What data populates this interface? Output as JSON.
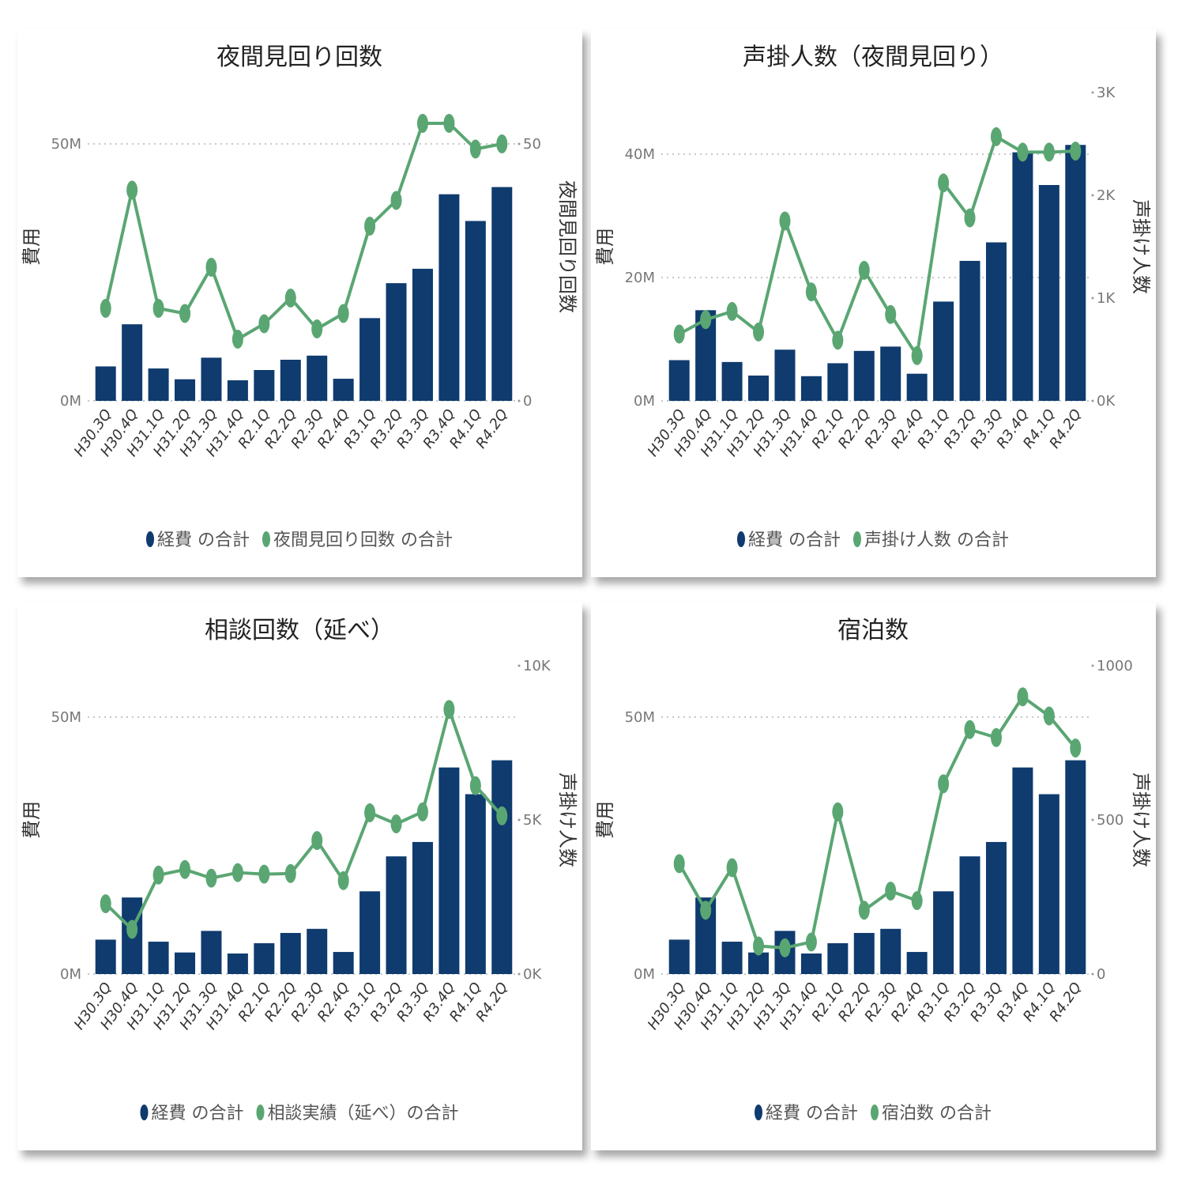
{
  "colors": {
    "bar": "#0f3b6e",
    "line": "#5aa673",
    "grid": "#c8c8c8"
  },
  "chart_data": [
    {
      "type": "bar+line",
      "title": "夜間見回り回数",
      "categories": [
        "H30.3Q",
        "H30.4Q",
        "H31.1Q",
        "H31.2Q",
        "H31.3Q",
        "H31.4Q",
        "R2.1Q",
        "R2.2Q",
        "R2.3Q",
        "R2.4Q",
        "R3.1Q",
        "R3.2Q",
        "R3.3Q",
        "R3.4Q",
        "R4.1Q",
        "R4.2Q"
      ],
      "ylabel": "費用",
      "y2label": "夜間見回り回数",
      "ylim": [
        0,
        60000000
      ],
      "y2lim": [
        0,
        60
      ],
      "left_ticks": [
        {
          "value": 0,
          "label": "0M"
        },
        {
          "value": 50000000,
          "label": "50M"
        }
      ],
      "right_ticks": [
        {
          "value": 0,
          "label": "0"
        },
        {
          "value": 50,
          "label": "50"
        }
      ],
      "grid": true,
      "legend_position": "bottom",
      "series": [
        {
          "name": "経費 の合計",
          "type": "bar",
          "axis": "left",
          "values": [
            6700000,
            14900000,
            6300000,
            4200000,
            8400000,
            4000000,
            6000000,
            8000000,
            8800000,
            4300000,
            16100000,
            22900000,
            25700000,
            40200000,
            35000000,
            41600000
          ]
        },
        {
          "name": "夜間見回り回数 の合計",
          "type": "line",
          "axis": "right",
          "values": [
            18,
            41,
            18,
            17,
            26,
            12,
            15,
            20,
            14,
            17,
            34,
            39,
            54,
            54,
            49,
            50
          ]
        }
      ]
    },
    {
      "type": "bar+line",
      "title": "声掛人数（夜間見回り）",
      "categories": [
        "H30.3Q",
        "H30.4Q",
        "H31.1Q",
        "H31.2Q",
        "H31.3Q",
        "H31.4Q",
        "R2.1Q",
        "R2.2Q",
        "R2.3Q",
        "R2.4Q",
        "R3.1Q",
        "R3.2Q",
        "R3.3Q",
        "R3.4Q",
        "R4.1Q",
        "R4.2Q"
      ],
      "ylabel": "費用",
      "y2label": "声掛け人数",
      "ylim": [
        0,
        50000000
      ],
      "y2lim": [
        0,
        3000
      ],
      "left_ticks": [
        {
          "value": 0,
          "label": "0M"
        },
        {
          "value": 20000000,
          "label": "20M"
        },
        {
          "value": 40000000,
          "label": "40M"
        }
      ],
      "right_ticks": [
        {
          "value": 0,
          "label": "0K"
        },
        {
          "value": 1000,
          "label": "1K"
        },
        {
          "value": 2000,
          "label": "2K"
        },
        {
          "value": 3000,
          "label": "3K"
        }
      ],
      "grid": true,
      "legend_position": "bottom",
      "series": [
        {
          "name": "経費 の合計",
          "type": "bar",
          "axis": "left",
          "values": [
            6600000,
            14700000,
            6300000,
            4100000,
            8300000,
            4000000,
            6100000,
            8100000,
            8800000,
            4400000,
            16100000,
            22700000,
            25700000,
            40300000,
            35000000,
            41500000
          ]
        },
        {
          "name": "声掛け人数 の合計",
          "type": "line",
          "axis": "right",
          "values": [
            650,
            790,
            870,
            670,
            1750,
            1060,
            590,
            1270,
            840,
            440,
            2120,
            1780,
            2570,
            2420,
            2420,
            2430
          ]
        }
      ]
    },
    {
      "type": "bar+line",
      "title": "相談回数（延べ）",
      "categories": [
        "H30.3Q",
        "H30.4Q",
        "H31.1Q",
        "H31.2Q",
        "H31.3Q",
        "H31.4Q",
        "R2.1Q",
        "R2.2Q",
        "R2.3Q",
        "R2.4Q",
        "R3.1Q",
        "R3.2Q",
        "R3.3Q",
        "R3.4Q",
        "R4.1Q",
        "R4.2Q"
      ],
      "ylabel": "費用",
      "y2label": "声掛け人数",
      "ylim": [
        0,
        60000000
      ],
      "y2lim": [
        0,
        10000
      ],
      "left_ticks": [
        {
          "value": 0,
          "label": "0M"
        },
        {
          "value": 50000000,
          "label": "50M"
        }
      ],
      "right_ticks": [
        {
          "value": 0,
          "label": "0K"
        },
        {
          "value": 5000,
          "label": "5K"
        },
        {
          "value": 10000,
          "label": "10K"
        }
      ],
      "grid": true,
      "legend_position": "bottom",
      "series": [
        {
          "name": "経費 の合計",
          "type": "bar",
          "axis": "left",
          "values": [
            6700000,
            14900000,
            6300000,
            4200000,
            8400000,
            4000000,
            6000000,
            8000000,
            8800000,
            4300000,
            16100000,
            22900000,
            25700000,
            40200000,
            35000000,
            41600000
          ]
        },
        {
          "name": "相談実績（延べ）の合計",
          "type": "line",
          "axis": "right",
          "values": [
            2280,
            1450,
            3210,
            3390,
            3110,
            3290,
            3240,
            3260,
            4330,
            3030,
            5230,
            4870,
            5260,
            8580,
            6110,
            5130
          ]
        }
      ]
    },
    {
      "type": "bar+line",
      "title": "宿泊数",
      "categories": [
        "H30.3Q",
        "H30.4Q",
        "H31.1Q",
        "H31.2Q",
        "H31.3Q",
        "H31.4Q",
        "R2.1Q",
        "R2.2Q",
        "R2.3Q",
        "R2.4Q",
        "R3.1Q",
        "R3.2Q",
        "R3.3Q",
        "R3.4Q",
        "R4.1Q",
        "R4.2Q"
      ],
      "ylabel": "費用",
      "y2label": "声掛け人数",
      "ylim": [
        0,
        60000000
      ],
      "y2lim": [
        0,
        1000
      ],
      "left_ticks": [
        {
          "value": 0,
          "label": "0M"
        },
        {
          "value": 50000000,
          "label": "50M"
        }
      ],
      "right_ticks": [
        {
          "value": 0,
          "label": "0"
        },
        {
          "value": 500,
          "label": "500"
        },
        {
          "value": 1000,
          "label": "1000"
        }
      ],
      "grid": true,
      "legend_position": "bottom",
      "series": [
        {
          "name": "経費 の合計",
          "type": "bar",
          "axis": "left",
          "values": [
            6700000,
            14900000,
            6300000,
            4200000,
            8400000,
            4000000,
            6000000,
            8000000,
            8800000,
            4300000,
            16100000,
            22900000,
            25700000,
            40200000,
            35000000,
            41600000
          ]
        },
        {
          "name": "宿泊数 の合計",
          "type": "line",
          "axis": "right",
          "values": [
            358,
            207,
            345,
            91,
            85,
            104,
            526,
            207,
            269,
            238,
            617,
            793,
            767,
            899,
            837,
            733
          ]
        }
      ]
    }
  ]
}
